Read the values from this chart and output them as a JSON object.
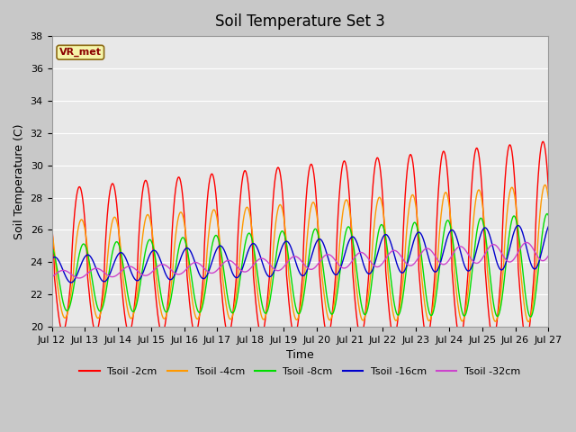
{
  "title": "Soil Temperature Set 3",
  "xlabel": "Time",
  "ylabel": "Soil Temperature (C)",
  "ylim": [
    20,
    38
  ],
  "xlim": [
    0,
    360
  ],
  "x_tick_labels": [
    "Jul 12",
    "Jul 13",
    "Jul 14",
    "Jul 15",
    "Jul 16",
    "Jul 17",
    "Jul 18",
    "Jul 19",
    "Jul 20",
    "Jul 21",
    "Jul 22",
    "Jul 23",
    "Jul 24",
    "Jul 25",
    "Jul 26",
    "Jul 27"
  ],
  "x_tick_positions": [
    0,
    24,
    48,
    72,
    96,
    120,
    144,
    168,
    192,
    216,
    240,
    264,
    288,
    312,
    336,
    360
  ],
  "y_ticks": [
    20,
    22,
    24,
    26,
    28,
    30,
    32,
    34,
    36,
    38
  ],
  "colors": {
    "2cm": "#ff0000",
    "4cm": "#ff9900",
    "8cm": "#00dd00",
    "16cm": "#0000cc",
    "32cm": "#cc44cc"
  },
  "legend_labels": [
    "Tsoil -2cm",
    "Tsoil -4cm",
    "Tsoil -8cm",
    "Tsoil -16cm",
    "Tsoil -32cm"
  ],
  "annotation_text": "VR_met",
  "fig_bg_color": "#c8c8c8",
  "plot_bg_color": "#e8e8e8",
  "grid_color": "#ffffff",
  "title_fontsize": 12,
  "label_fontsize": 9,
  "tick_fontsize": 8
}
